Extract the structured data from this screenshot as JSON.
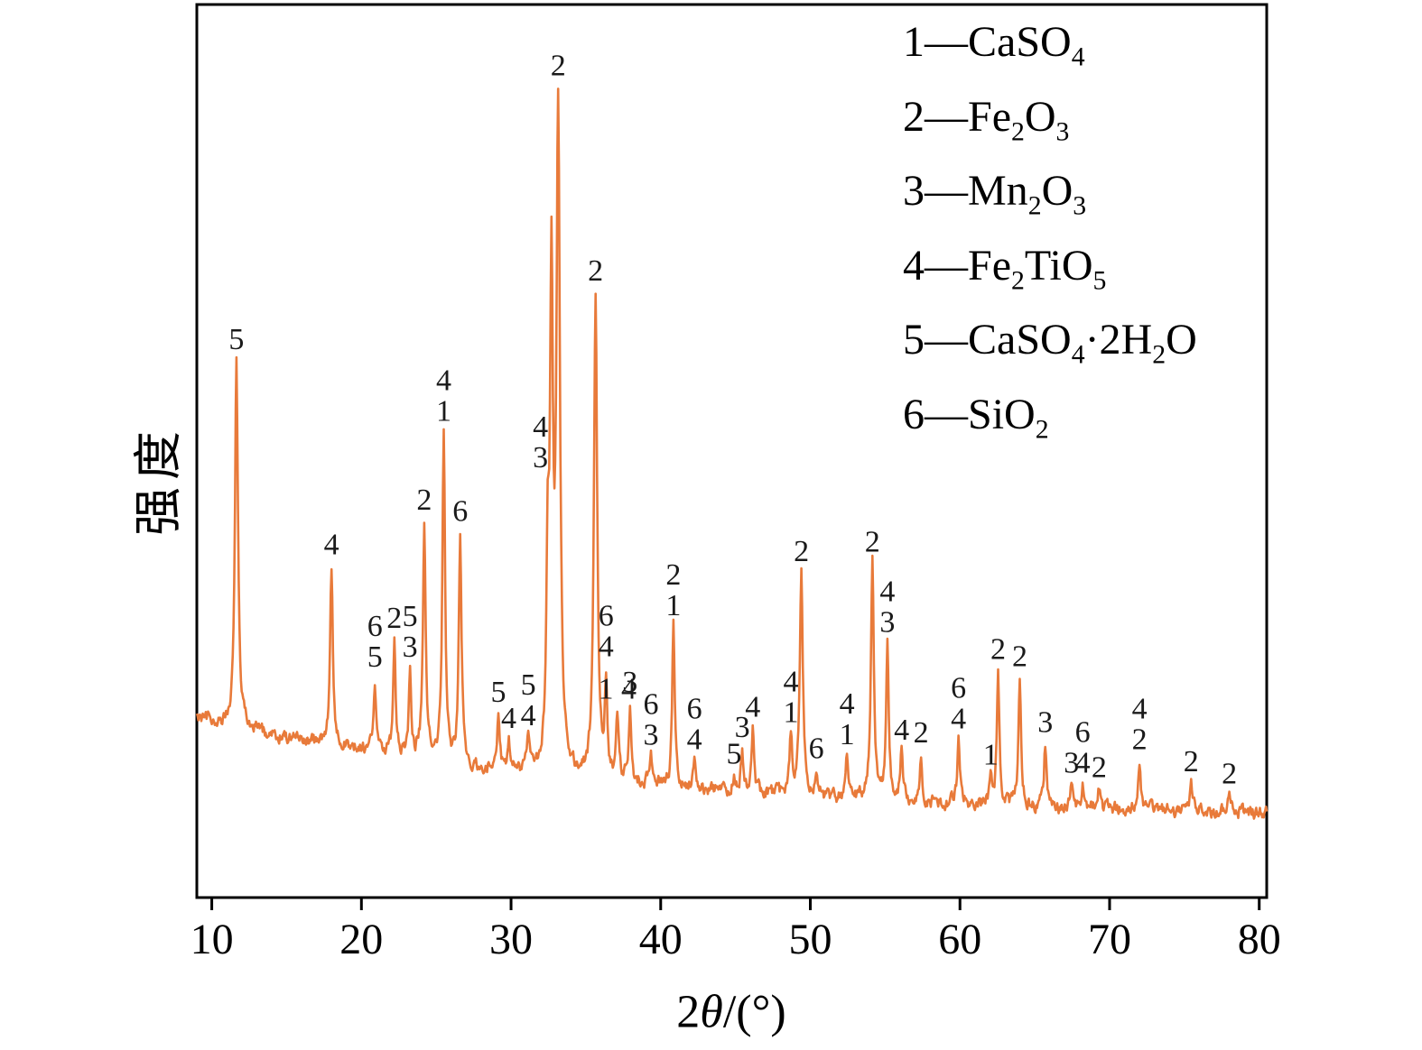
{
  "figure": {
    "background": "#ffffff"
  },
  "chart_data": {
    "type": "line",
    "kind": "XRD pattern",
    "title": "",
    "xlabel": "2θ/(°)",
    "ylabel": "强度",
    "x_range": [
      9,
      80.5
    ],
    "x_ticks": [
      10,
      20,
      30,
      40,
      50,
      60,
      70,
      80
    ],
    "grid": false,
    "line_color": "#e87a3a",
    "axis_color": "#000000",
    "label_color": "#1a1a1a",
    "baseline": {
      "floor": 85,
      "amp": 115,
      "decay": 28,
      "noise": 6
    },
    "peaks": [
      {
        "x": 11.65,
        "h": 0.56,
        "w": 0.12,
        "labels": [
          "5"
        ]
      },
      {
        "x": 18.0,
        "h": 0.275,
        "w": 0.11,
        "labels": [
          "4"
        ]
      },
      {
        "x": 20.9,
        "h": 0.113,
        "labels": [
          "6",
          "5"
        ]
      },
      {
        "x": 22.2,
        "h": 0.175,
        "labels": [
          "2"
        ]
      },
      {
        "x": 23.25,
        "h": 0.13,
        "labels": [
          "5",
          "3"
        ]
      },
      {
        "x": 24.2,
        "h": 0.36,
        "w": 0.11,
        "labels": [
          "2"
        ]
      },
      {
        "x": 25.5,
        "h": 0.5,
        "w": 0.11,
        "labels": [
          "4",
          "1"
        ]
      },
      {
        "x": 26.6,
        "h": 0.35,
        "w": 0.11,
        "labels": [
          "6"
        ]
      },
      {
        "x": 29.15,
        "h": 0.083,
        "labels": [
          "5"
        ]
      },
      {
        "x": 29.85,
        "h": 0.043,
        "labels": [
          "4"
        ]
      },
      {
        "x": 31.15,
        "h": 0.045,
        "labels": [
          "5",
          "4"
        ]
      },
      {
        "x": 32.45,
        "h": 0.28,
        "ldx": -8,
        "labels": [
          "4",
          "3"
        ]
      },
      {
        "x": 32.7,
        "h": 0.72,
        "w": 0.12,
        "labels": []
      },
      {
        "x": 33.15,
        "h": 1.0,
        "w": 0.14,
        "labels": [
          "2"
        ]
      },
      {
        "x": 35.65,
        "h": 0.74,
        "w": 0.13,
        "labels": [
          "2"
        ]
      },
      {
        "x": 36.35,
        "h": 0.145,
        "labels": [
          "6",
          "4"
        ]
      },
      {
        "x": 37.1,
        "h": 0.1,
        "row": true,
        "labels": [
          "1",
          "4"
        ]
      },
      {
        "x": 37.95,
        "h": 0.118,
        "labels": [
          "3"
        ]
      },
      {
        "x": 39.35,
        "h": 0.042,
        "labels": [
          "6",
          "3"
        ]
      },
      {
        "x": 40.85,
        "h": 0.245,
        "labels": [
          "2",
          "1"
        ]
      },
      {
        "x": 42.25,
        "h": 0.042,
        "labels": [
          "6",
          "4"
        ]
      },
      {
        "x": 44.9,
        "h": 0.023,
        "labels": [
          "5"
        ]
      },
      {
        "x": 45.45,
        "h": 0.065,
        "labels": [
          "3"
        ]
      },
      {
        "x": 46.15,
        "h": 0.098,
        "labels": [
          "4"
        ]
      },
      {
        "x": 48.7,
        "h": 0.085,
        "labels": [
          "4",
          "1"
        ]
      },
      {
        "x": 49.4,
        "h": 0.34,
        "w": 0.12,
        "labels": [
          "2"
        ]
      },
      {
        "x": 50.4,
        "h": 0.037,
        "labels": [
          "6"
        ]
      },
      {
        "x": 52.45,
        "h": 0.064,
        "labels": [
          "4",
          "1"
        ]
      },
      {
        "x": 54.15,
        "h": 0.36,
        "w": 0.12,
        "labels": [
          "2"
        ]
      },
      {
        "x": 55.15,
        "h": 0.235,
        "labels": [
          "4",
          "3"
        ]
      },
      {
        "x": 56.1,
        "h": 0.073,
        "labels": [
          "4"
        ]
      },
      {
        "x": 57.4,
        "h": 0.073,
        "labels": [
          "2"
        ]
      },
      {
        "x": 59.9,
        "h": 0.098,
        "labels": [
          "6",
          "4"
        ]
      },
      {
        "x": 62.05,
        "h": 0.037,
        "labels": [
          "1"
        ]
      },
      {
        "x": 62.55,
        "h": 0.205,
        "labels": [
          "2"
        ]
      },
      {
        "x": 64.0,
        "h": 0.196,
        "labels": [
          "2"
        ]
      },
      {
        "x": 65.7,
        "h": 0.097,
        "labels": [
          "3"
        ]
      },
      {
        "x": 67.45,
        "h": 0.036,
        "labels": [
          "3"
        ]
      },
      {
        "x": 68.2,
        "h": 0.037,
        "labels": [
          "6",
          "4"
        ]
      },
      {
        "x": 69.3,
        "h": 0.031,
        "labels": [
          "2"
        ]
      },
      {
        "x": 72.0,
        "h": 0.076,
        "labels": [
          "4",
          "2"
        ]
      },
      {
        "x": 75.45,
        "h": 0.044,
        "labels": [
          "2"
        ]
      },
      {
        "x": 78.0,
        "h": 0.027,
        "labels": [
          "2"
        ]
      }
    ],
    "legend": {
      "position": "top-right",
      "separator": "—",
      "entries": [
        {
          "num": "1",
          "formula": "CaSO~4~"
        },
        {
          "num": "2",
          "formula": "Fe~2~O~3~"
        },
        {
          "num": "3",
          "formula": "Mn~2~O~3~"
        },
        {
          "num": "4",
          "formula": "Fe~2~TiO~5~"
        },
        {
          "num": "5",
          "formula": "CaSO~4~·2H~2~O"
        },
        {
          "num": "6",
          "formula": "SiO~2~"
        }
      ]
    }
  }
}
